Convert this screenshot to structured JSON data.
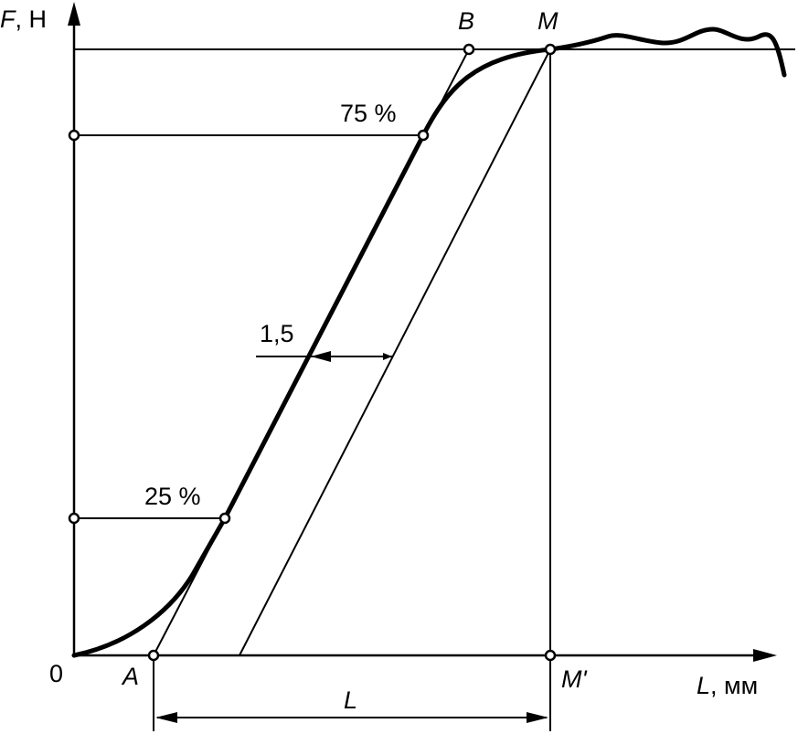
{
  "axes": {
    "y_label_var": "F",
    "y_label_unit": ", Н",
    "x_label_var": "L",
    "x_label_unit": ", мм",
    "origin": "0"
  },
  "points": {
    "a": "A",
    "b": "B",
    "m": "M",
    "m_prime": "M'"
  },
  "annotations": {
    "p25": "25 %",
    "p75": "75 %",
    "offset": "1,5",
    "dimension": "L"
  }
}
